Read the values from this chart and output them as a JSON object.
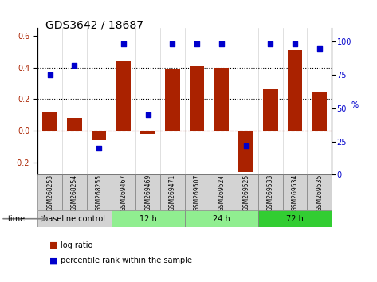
{
  "title": "GDS3642 / 18687",
  "categories": [
    "GSM268253",
    "GSM268254",
    "GSM268255",
    "GSM269467",
    "GSM269469",
    "GSM269471",
    "GSM269507",
    "GSM269524",
    "GSM269525",
    "GSM269533",
    "GSM269534",
    "GSM269535"
  ],
  "log_ratio": [
    0.12,
    0.08,
    -0.06,
    0.44,
    -0.02,
    0.39,
    0.41,
    0.4,
    -0.26,
    0.265,
    0.51,
    0.25
  ],
  "percentile_rank": [
    75,
    82,
    20,
    98,
    45,
    98,
    98,
    98,
    22,
    98,
    98,
    95
  ],
  "bar_color": "#aa2200",
  "dot_color": "#0000cc",
  "ylim": [
    -0.28,
    0.65
  ],
  "y2lim": [
    0,
    110
  ],
  "y_ticks": [
    -0.2,
    0.0,
    0.2,
    0.4,
    0.6
  ],
  "y2_ticks": [
    0,
    25,
    50,
    75,
    100
  ],
  "dotted_lines": [
    0.2,
    0.4
  ],
  "dashed_line": 0.0,
  "time_groups": [
    {
      "label": "baseline control",
      "start": 0,
      "end": 3,
      "color": "#d3d3d3"
    },
    {
      "label": "12 h",
      "start": 3,
      "end": 6,
      "color": "#90ee90"
    },
    {
      "label": "24 h",
      "start": 6,
      "end": 9,
      "color": "#90ee90"
    },
    {
      "label": "72 h",
      "start": 9,
      "end": 12,
      "color": "#32cd32"
    }
  ],
  "legend_log_ratio": "log ratio",
  "legend_percentile": "percentile rank within the sample",
  "time_label": "time"
}
